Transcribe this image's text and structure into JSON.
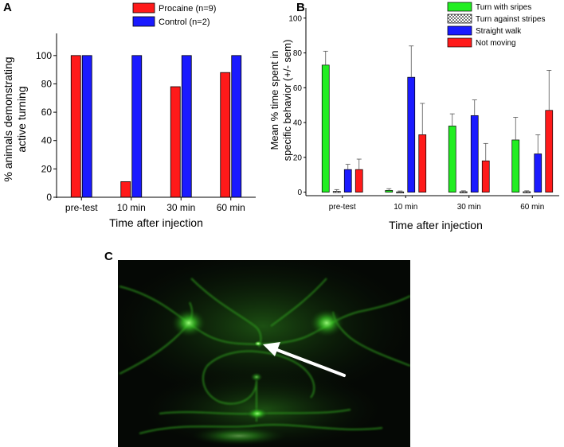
{
  "panels": {
    "a": "A",
    "b": "B",
    "c": "C"
  },
  "chart_data": [
    {
      "type": "bar",
      "panel": "A",
      "categories": [
        "pre-test",
        "10 min",
        "30 min",
        "60 min"
      ],
      "series": [
        {
          "name": "Procaine (n=9)",
          "color": "#ff1a1a",
          "values": [
            100,
            11,
            78,
            88
          ]
        },
        {
          "name": "Control (n=2)",
          "color": "#1a1aff",
          "values": [
            100,
            100,
            100,
            100
          ]
        }
      ],
      "xlabel": "Time after injection",
      "ylabel": "% animals demonstrating active turning",
      "ylim": [
        0,
        110
      ],
      "yticks": [
        0,
        20,
        40,
        60,
        80,
        100
      ],
      "grid": false,
      "legend_position": "top"
    },
    {
      "type": "bar",
      "panel": "B",
      "categories": [
        "pre-test",
        "10 min",
        "30 min",
        "60 min"
      ],
      "series": [
        {
          "name": "Turn with sripes",
          "color": "#22ee22",
          "values": [
            73,
            1,
            38,
            30
          ],
          "errors": [
            8,
            1,
            7,
            13
          ]
        },
        {
          "name": "Turn against stripes",
          "color": "#c0c0c0",
          "pattern": "checker",
          "values": [
            0.5,
            0.2,
            0.3,
            0.3
          ],
          "errors": [
            1,
            0.5,
            0.5,
            0.5
          ]
        },
        {
          "name": "Straight walk",
          "color": "#1a1aff",
          "values": [
            13,
            66,
            44,
            22
          ],
          "errors": [
            3,
            18,
            9,
            11
          ]
        },
        {
          "name": "Not moving",
          "color": "#ff1a1a",
          "values": [
            13,
            33,
            18,
            47
          ],
          "errors": [
            6,
            18,
            10,
            23
          ]
        }
      ],
      "xlabel": "Time after injection",
      "ylabel": "Mean % time spent in specific behavior (+/- sem)",
      "ylim": [
        -2,
        104
      ],
      "yticks": [
        0,
        20,
        40,
        60,
        80,
        100
      ],
      "grid": false,
      "legend_position": "top-right"
    }
  ],
  "micrograph": {
    "panel": "C",
    "colors": {
      "background": "#050805",
      "fluorescence": "#39d42a",
      "arrow": "#ffffff"
    }
  }
}
